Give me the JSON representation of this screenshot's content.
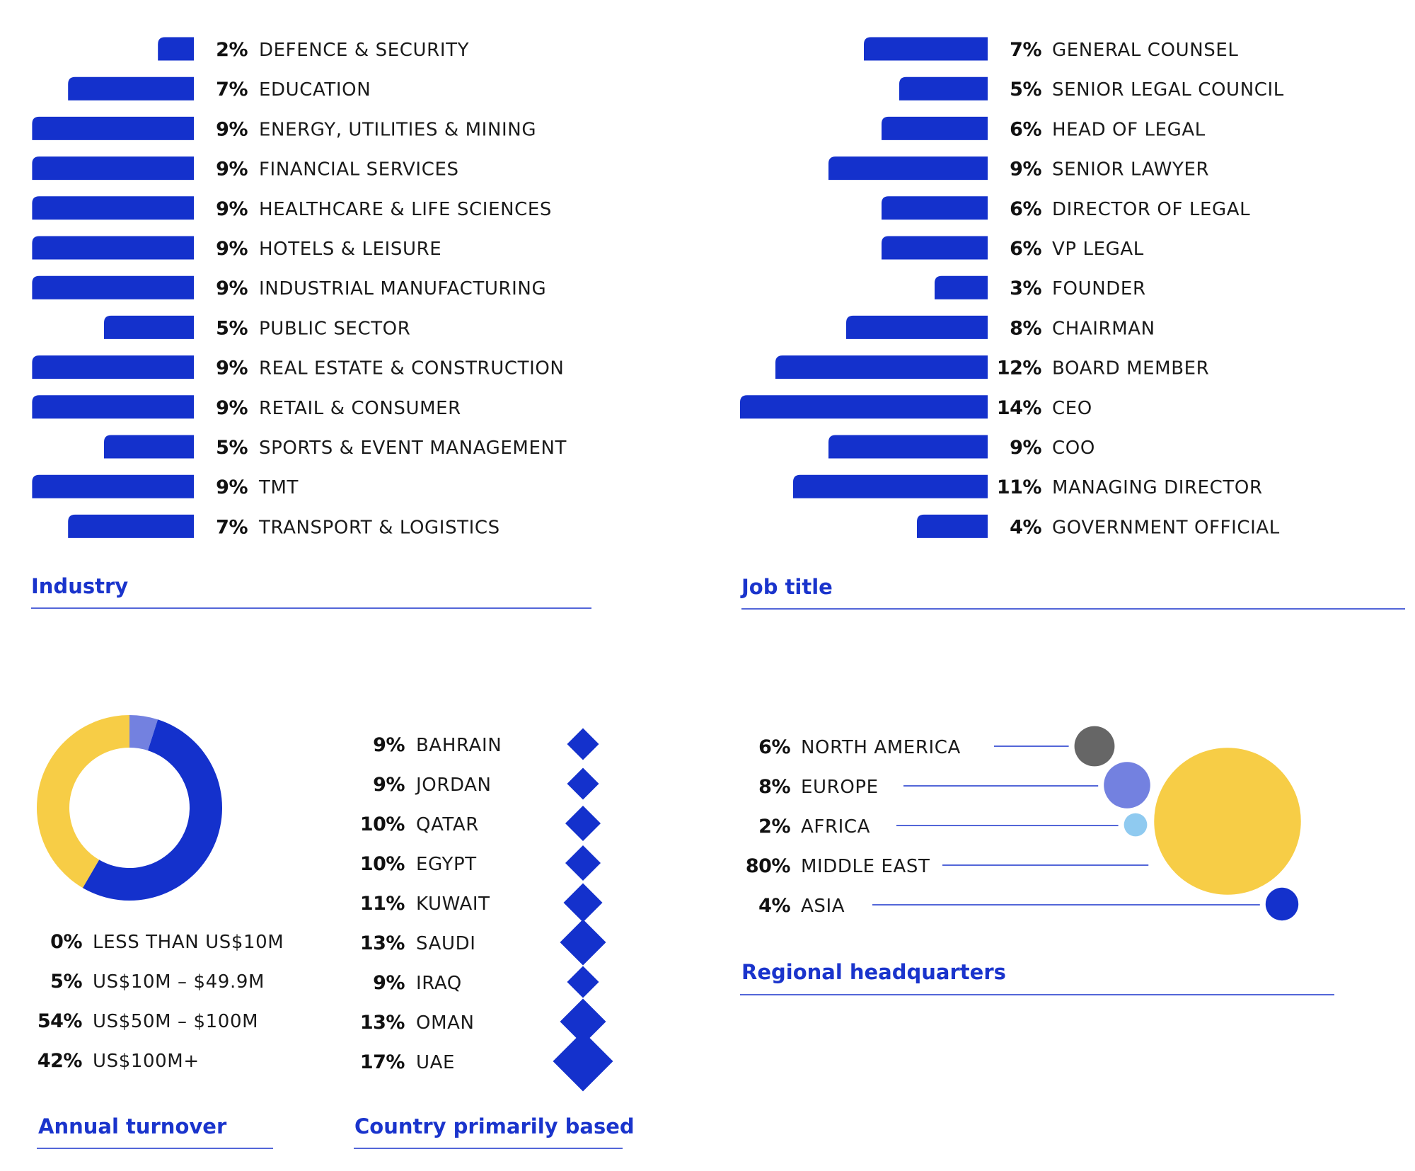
{
  "colors": {
    "bar": "#1431cc",
    "title": "#1a34cc",
    "rule": "#1a34cc",
    "yellow": "#f7cd46",
    "lavender": "#7381e0",
    "grey": "#666666",
    "lightblue": "#8fcaf0"
  },
  "chart_data": [
    {
      "id": "industry",
      "type": "bar",
      "orientation": "horizontal",
      "title": "Industry",
      "categories": [
        "DEFENCE & SECURITY",
        "EDUCATION",
        "ENERGY, UTILITIES & MINING",
        "FINANCIAL SERVICES",
        "HEALTHCARE & LIFE SCIENCES",
        "HOTELS & LEISURE",
        "INDUSTRIAL MANUFACTURING",
        "PUBLIC SECTOR",
        "REAL ESTATE & CONSTRUCTION",
        "RETAIL & CONSUMER",
        "SPORTS & EVENT MANAGEMENT",
        "TMT",
        "TRANSPORT & LOGISTICS"
      ],
      "values": [
        2,
        7,
        9,
        9,
        9,
        9,
        9,
        5,
        9,
        9,
        5,
        9,
        7
      ],
      "labels": [
        "2%",
        "7%",
        "9%",
        "9%",
        "9%",
        "9%",
        "9%",
        "5%",
        "9%",
        "9%",
        "5%",
        "9%",
        "7%"
      ]
    },
    {
      "id": "job_title",
      "type": "bar",
      "orientation": "horizontal",
      "title": "Job title",
      "categories": [
        "GENERAL COUNSEL",
        "SENIOR LEGAL COUNCIL",
        "HEAD OF LEGAL",
        "SENIOR LAWYER",
        "DIRECTOR OF LEGAL",
        "VP LEGAL",
        "FOUNDER",
        "CHAIRMAN",
        "BOARD MEMBER",
        "CEO",
        "COO",
        "MANAGING DIRECTOR",
        "GOVERNMENT OFFICIAL"
      ],
      "values": [
        7,
        5,
        6,
        9,
        6,
        6,
        3,
        8,
        12,
        14,
        9,
        11,
        4
      ],
      "labels": [
        "7%",
        "5%",
        "6%",
        "9%",
        "6%",
        "6%",
        "3%",
        "8%",
        "12%",
        "14%",
        "9%",
        "11%",
        "4%"
      ]
    },
    {
      "id": "annual_turnover",
      "type": "pie",
      "title": "Annual turnover",
      "categories": [
        "LESS THAN US$10M",
        "US$10M – $49.9M",
        "US$50M – $100M",
        "US$100M+"
      ],
      "values": [
        0,
        5,
        54,
        42
      ],
      "labels": [
        "0%",
        "5%",
        "54%",
        "42%"
      ],
      "colors": [
        "#1431cc",
        "#7381e0",
        "#1431cc",
        "#f7cd46"
      ]
    },
    {
      "id": "country",
      "type": "scatter",
      "title": "Country primarily based",
      "categories": [
        "BAHRAIN",
        "JORDAN",
        "QATAR",
        "EGYPT",
        "KUWAIT",
        "SAUDI",
        "IRAQ",
        "OMAN",
        "UAE"
      ],
      "values": [
        9,
        9,
        10,
        10,
        11,
        13,
        9,
        13,
        17
      ],
      "labels": [
        "9%",
        "9%",
        "10%",
        "10%",
        "11%",
        "13%",
        "9%",
        "13%",
        "17%"
      ]
    },
    {
      "id": "regional_hq",
      "type": "scatter",
      "title": "Regional headquarters",
      "categories": [
        "NORTH AMERICA",
        "EUROPE",
        "AFRICA",
        "MIDDLE EAST",
        "ASIA"
      ],
      "values": [
        6,
        8,
        2,
        80,
        4
      ],
      "labels": [
        "6%",
        "8%",
        "2%",
        "80%",
        "4%"
      ],
      "colors": [
        "#666666",
        "#7381e0",
        "#8fcaf0",
        "#f7cd46",
        "#1431cc"
      ]
    }
  ]
}
